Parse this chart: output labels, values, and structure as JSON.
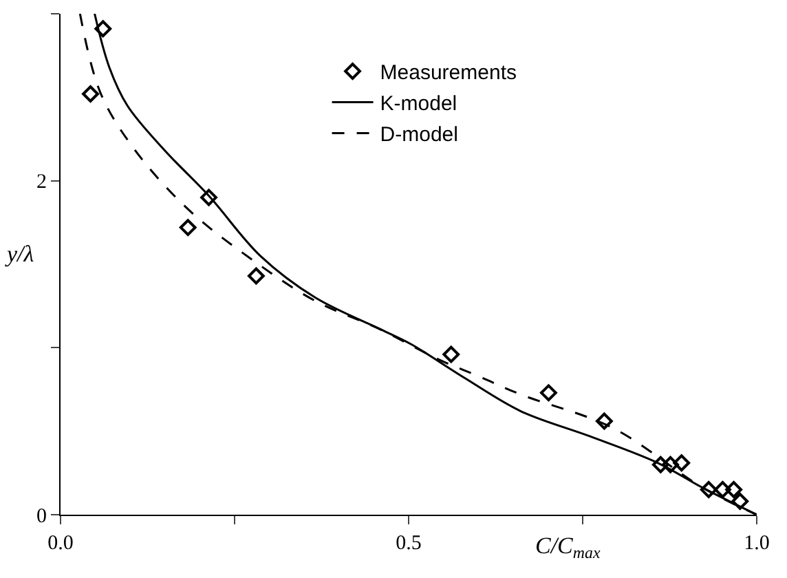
{
  "chart_data": {
    "type": "line",
    "xlabel": "C/C$_{max}$",
    "ylabel": "y/λ",
    "xlim": [
      0,
      1
    ],
    "ylim": [
      0,
      3
    ],
    "xticks": [
      {
        "value": 0,
        "label": "0.0"
      },
      {
        "value": 0.25,
        "label": null
      },
      {
        "value": 0.5,
        "label": "0.5"
      },
      {
        "value": 0.75,
        "label": null
      },
      {
        "value": 1,
        "label": "1.0"
      }
    ],
    "yticks": [
      0,
      {
        "value": 1,
        "label": null
      },
      2,
      {
        "value": 3,
        "label": null
      }
    ],
    "grid": false,
    "legend": "top right",
    "series": [
      {
        "name": "Measurements",
        "type": "scatter",
        "marker": "diamond",
        "color": "#000000",
        "x": [
          0.043,
          0.061,
          0.183,
          0.213,
          0.281,
          0.561,
          0.701,
          0.781,
          0.862,
          0.876,
          0.892,
          0.931,
          0.951,
          0.967,
          0.976
        ],
        "values": [
          2.52,
          2.91,
          1.72,
          1.9,
          1.43,
          0.96,
          0.73,
          0.56,
          0.3,
          0.3,
          0.31,
          0.15,
          0.15,
          0.15,
          0.08
        ]
      },
      {
        "name": "K-model",
        "line_style": "solid",
        "marker": "none",
        "color": "#000000",
        "x": [
          0.049,
          0.07,
          0.096,
          0.15,
          0.213,
          0.287,
          0.366,
          0.465,
          0.504,
          0.58,
          0.661,
          0.76,
          0.858,
          0.923,
          1.0
        ],
        "values": [
          3.0,
          2.68,
          2.45,
          2.18,
          1.91,
          1.55,
          1.3,
          1.1,
          1.02,
          0.82,
          0.62,
          0.47,
          0.31,
          0.16,
          0
        ]
      },
      {
        "name": "D-model",
        "line_style": "dashed",
        "marker": "none",
        "color": "#000000",
        "x": [
          0.028,
          0.057,
          0.104,
          0.183,
          0.281,
          0.366,
          0.459,
          0.543,
          0.6,
          0.661,
          0.793,
          0.923,
          1.0
        ],
        "values": [
          3.0,
          2.53,
          2.2,
          1.83,
          1.51,
          1.28,
          1.11,
          0.93,
          0.83,
          0.72,
          0.52,
          0.16,
          0
        ]
      }
    ]
  }
}
